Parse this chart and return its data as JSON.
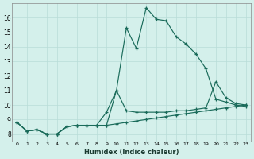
{
  "xlabel": "Humidex (Indice chaleur)",
  "bg_color": "#d4f0eb",
  "line_color": "#1a6b5a",
  "grid_color": "#b8ddd8",
  "xlim": [
    -0.5,
    23.5
  ],
  "ylim": [
    7.5,
    17.0
  ],
  "xtick_labels": [
    "0",
    "1",
    "2",
    "3",
    "4",
    "5",
    "6",
    "7",
    "8",
    "9",
    "10",
    "11",
    "12",
    "13",
    "14",
    "15",
    "16",
    "17",
    "18",
    "19",
    "20",
    "21",
    "22",
    "23"
  ],
  "yticks": [
    8,
    9,
    10,
    11,
    12,
    13,
    14,
    15,
    16
  ],
  "series": [
    [
      8.8,
      8.2,
      8.3,
      8.0,
      8.0,
      8.5,
      8.6,
      8.6,
      8.6,
      8.6,
      11.0,
      15.3,
      13.9,
      16.7,
      15.9,
      15.8,
      14.7,
      14.2,
      13.5,
      12.5,
      10.4,
      10.2,
      10.0,
      9.9
    ],
    [
      8.8,
      8.2,
      8.3,
      8.0,
      8.0,
      8.5,
      8.6,
      8.6,
      8.6,
      9.5,
      11.0,
      9.6,
      9.5,
      9.5,
      9.5,
      9.5,
      9.6,
      9.6,
      9.7,
      9.8,
      11.6,
      10.5,
      10.1,
      10.0
    ],
    [
      8.8,
      8.2,
      8.3,
      8.0,
      8.0,
      8.5,
      8.6,
      8.6,
      8.6,
      8.6,
      8.7,
      8.8,
      8.9,
      9.0,
      9.1,
      9.2,
      9.3,
      9.4,
      9.5,
      9.6,
      9.7,
      9.8,
      9.9,
      10.0
    ]
  ]
}
